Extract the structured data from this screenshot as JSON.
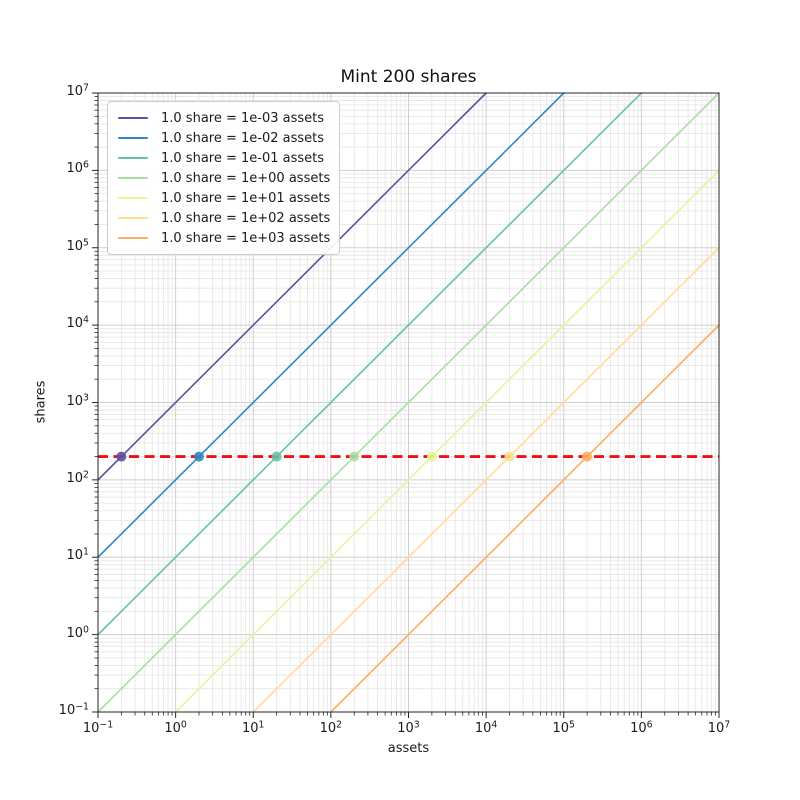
{
  "chart_data": {
    "type": "line",
    "title": "Mint 200 shares",
    "xlabel": "assets",
    "ylabel": "shares",
    "xscale": "log",
    "yscale": "log",
    "xlim": [
      0.1,
      10000000
    ],
    "ylim": [
      0.1,
      10000000
    ],
    "grid": "major+minor",
    "legend_position": "upper left",
    "x_tick_exponents": [
      -1,
      0,
      1,
      2,
      3,
      4,
      5,
      6,
      7
    ],
    "y_tick_exponents": [
      -1,
      0,
      1,
      2,
      3,
      4,
      5,
      6,
      7
    ],
    "series": [
      {
        "label": "1.0 share = 1e-03 assets",
        "assets_per_share": 0.001,
        "color": "#5e4fa2",
        "x": [
          0.1,
          10000
        ],
        "y": [
          100,
          10000000
        ],
        "marker_at": {
          "x": 0.2,
          "y": 200
        }
      },
      {
        "label": "1.0 share = 1e-02 assets",
        "assets_per_share": 0.01,
        "color": "#3288bd",
        "x": [
          0.1,
          100000
        ],
        "y": [
          10,
          10000000
        ],
        "marker_at": {
          "x": 2,
          "y": 200
        }
      },
      {
        "label": "1.0 share = 1e-01 assets",
        "assets_per_share": 0.1,
        "color": "#66c2a5",
        "x": [
          0.1,
          1000000
        ],
        "y": [
          1,
          10000000
        ],
        "marker_at": {
          "x": 20,
          "y": 200
        }
      },
      {
        "label": "1.0 share = 1e+00 assets",
        "assets_per_share": 1,
        "color": "#abdda4",
        "x": [
          0.1,
          10000000
        ],
        "y": [
          0.1,
          10000000
        ],
        "marker_at": {
          "x": 200,
          "y": 200
        }
      },
      {
        "label": "1.0 share = 1e+01 assets",
        "assets_per_share": 10,
        "color": "#e6f598",
        "x": [
          1,
          10000000
        ],
        "y": [
          0.1,
          1000000
        ],
        "marker_at": {
          "x": 2000,
          "y": 200
        }
      },
      {
        "label": "1.0 share = 1e+02 assets",
        "assets_per_share": 100,
        "color": "#fee08b",
        "x": [
          10,
          10000000
        ],
        "y": [
          0.1,
          100000
        ],
        "marker_at": {
          "x": 20000,
          "y": 200
        }
      },
      {
        "label": "1.0 share = 1e+03 assets",
        "assets_per_share": 1000,
        "color": "#fdae61",
        "x": [
          100,
          10000000
        ],
        "y": [
          0.1,
          10000
        ],
        "marker_at": {
          "x": 200000,
          "y": 200
        }
      }
    ],
    "reference_line": {
      "y": 200,
      "color": "#ee1111",
      "style": "dashed"
    },
    "style_colors": {
      "grid_major": "#cfcfcf",
      "grid_minor": "#e7e7e7",
      "spine": "#262626",
      "text": "#1a1a1a",
      "legend_border": "#cccccc",
      "background": "#ffffff"
    }
  }
}
